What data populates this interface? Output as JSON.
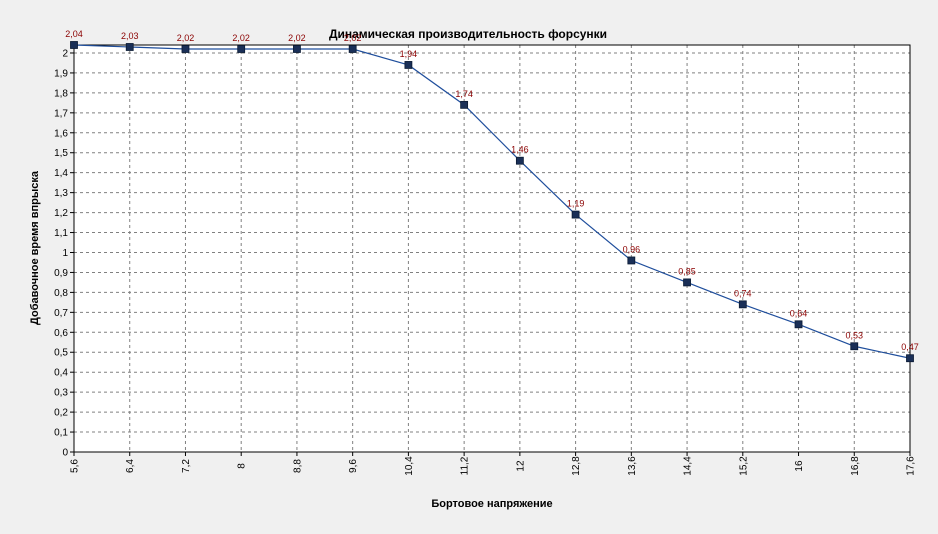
{
  "chart_data": {
    "type": "line",
    "title": "Динамическая производительность форсунки",
    "xlabel": "Бортовое напряжение",
    "ylabel": "Добавочное время впрыска",
    "x": [
      "5,6",
      "6,4",
      "7,2",
      "8",
      "8,8",
      "9,6",
      "10,4",
      "11,2",
      "12",
      "12,8",
      "13,6",
      "14,4",
      "15,2",
      "16",
      "16,8",
      "17,6"
    ],
    "values": [
      2.04,
      2.03,
      2.02,
      2.02,
      2.02,
      2.02,
      1.94,
      1.74,
      1.46,
      1.19,
      0.96,
      0.85,
      0.74,
      0.64,
      0.53,
      0.47
    ],
    "value_labels": [
      "2,04",
      "2,03",
      "2,02",
      "2,02",
      "2,02",
      "2,02",
      "1,94",
      "1,74",
      "1,46",
      "1,19",
      "0,96",
      "0,85",
      "0,74",
      "0,64",
      "0,53",
      "0,47"
    ],
    "y_ticks": [
      "0",
      "0,1",
      "0,2",
      "0,3",
      "0,4",
      "0,5",
      "0,6",
      "0,7",
      "0,8",
      "0,9",
      "1",
      "1,1",
      "1,2",
      "1,3",
      "1,4",
      "1,5",
      "1,6",
      "1,7",
      "1,8",
      "1,9",
      "2"
    ],
    "ylim": [
      0,
      2.04
    ],
    "grid": true,
    "legend": "none",
    "colors": {
      "line": "#1f4e9c",
      "marker": "#1a2f57",
      "data_label": "#8b0000",
      "grid": "#808080",
      "background": "#f0f0f0"
    }
  }
}
